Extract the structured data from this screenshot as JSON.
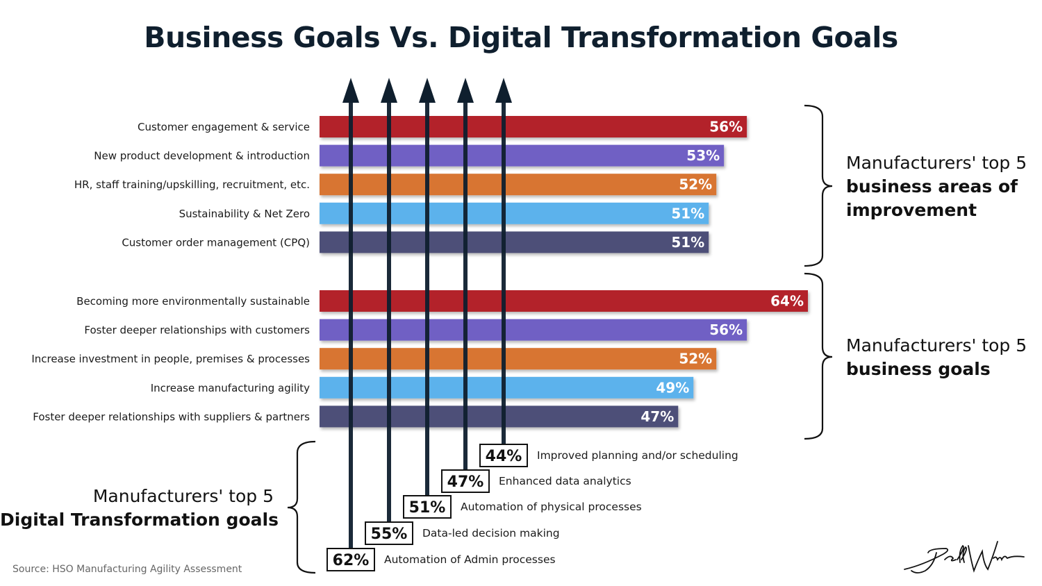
{
  "title": "Business Goals Vs. Digital Transformation Goals",
  "source": "Source: HSO Manufacturing Agility Assessment",
  "notes": {
    "areas": {
      "lead": "Manufacturers' top 5",
      "strong1": "business areas of",
      "strong2": "improvement"
    },
    "goals": {
      "lead": "Manufacturers' top 5",
      "strong": "business goals"
    },
    "dt": {
      "lead": "Manufacturers' top 5",
      "strong": "Digital Transformation goals"
    }
  },
  "colors": {
    "series": [
      "#b3232c",
      "#7060c4",
      "#d87530",
      "#5cb2ec",
      "#4e4f78"
    ],
    "arrow": "#0f1f2e"
  },
  "chart_data": [
    {
      "type": "bar",
      "orientation": "horizontal",
      "group": "areas",
      "categories": [
        "Customer engagement & service",
        "New product development & introduction",
        "HR, staff training/upskilling, recruitment, etc.",
        "Sustainability & Net Zero",
        "Customer order management (CPQ)"
      ],
      "values": [
        56,
        53,
        52,
        51,
        51
      ],
      "value_labels": [
        "56%",
        "53%",
        "52%",
        "51%",
        "51%"
      ],
      "xlim": [
        0,
        64
      ]
    },
    {
      "type": "bar",
      "orientation": "horizontal",
      "group": "goals",
      "categories": [
        "Becoming more environmentally sustainable",
        "Foster deeper relationships with customers",
        "Increase investment in people, premises & processes",
        "Increase manufacturing agility",
        "Foster deeper relationships with suppliers & partners"
      ],
      "values": [
        64,
        56,
        52,
        49,
        47
      ],
      "value_labels": [
        "64%",
        "56%",
        "52%",
        "49%",
        "47%"
      ],
      "xlim": [
        0,
        64
      ]
    },
    {
      "type": "bar",
      "orientation": "vertical",
      "group": "dt",
      "categories": [
        "Automation of Admin processes",
        "Data-led decision making",
        "Automation of physical processes",
        "Enhanced data analytics",
        "Improved planning and/or scheduling"
      ],
      "values": [
        62,
        55,
        51,
        47,
        44
      ],
      "value_labels": [
        "62%",
        "55%",
        "51%",
        "47%",
        "44%"
      ]
    }
  ]
}
